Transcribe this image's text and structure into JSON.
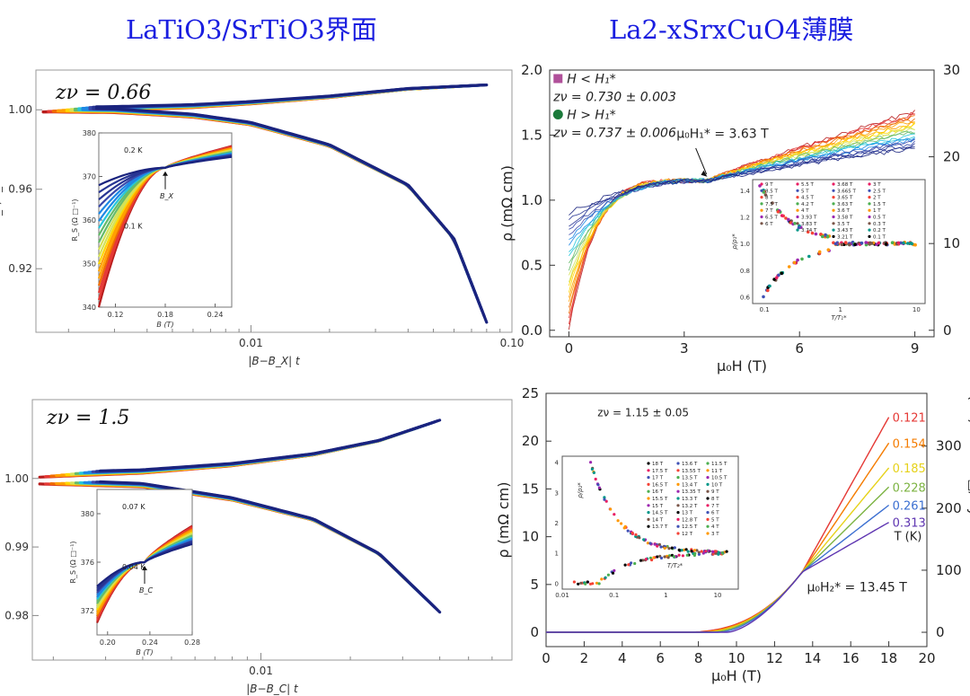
{
  "headings": {
    "left": "LaTiO3/SrTiO3界面",
    "right": "La2-xSrxCuO4薄膜"
  },
  "colors": {
    "title": "#1a1ee0",
    "rainbow": [
      "#1a237e",
      "#283593",
      "#3949ab",
      "#1e88e5",
      "#26c6da",
      "#66bb6a",
      "#d4e157",
      "#ffd600",
      "#ffa000",
      "#ef6c00",
      "#e53935",
      "#b71c1c"
    ]
  },
  "chart_data": [
    {
      "id": "A",
      "type": "line",
      "annotation": "zν = 0.66",
      "xlabel": "|B−B_X| t",
      "ylabel": "R_S/R_X",
      "x_scale": "log",
      "xlim": [
        0.0015,
        0.1
      ],
      "ylim": [
        0.888,
        1.02
      ],
      "x_ticks": [
        {
          "v": 0.01,
          "label": "0.01"
        },
        {
          "v": 0.1,
          "label": "0.10"
        }
      ],
      "y_ticks": [
        {
          "v": 1.0,
          "label": "1.00"
        },
        {
          "v": 0.96,
          "label": "0.96"
        },
        {
          "v": 0.92,
          "label": "0.92"
        }
      ],
      "upper_branch": {
        "x": [
          0.0016,
          0.003,
          0.006,
          0.01,
          0.02,
          0.04,
          0.08
        ],
        "y": [
          1.0,
          1.0006,
          1.0018,
          1.0035,
          1.0065,
          1.0105,
          1.0125
        ]
      },
      "lower_branch": {
        "x": [
          0.0016,
          0.003,
          0.006,
          0.01,
          0.02,
          0.04,
          0.06,
          0.08
        ],
        "y": [
          1.0,
          0.9995,
          0.997,
          0.993,
          0.982,
          0.962,
          0.935,
          0.893
        ]
      },
      "inset": {
        "xlabel": "B (T)",
        "ylabel": "R_S (Ω □⁻¹)",
        "xlim": [
          0.1,
          0.26
        ],
        "ylim": [
          340,
          380
        ],
        "x_ticks": [
          {
            "v": 0.12,
            "label": "0.12"
          },
          {
            "v": 0.18,
            "label": "0.18"
          },
          {
            "v": 0.24,
            "label": "0.24"
          }
        ],
        "y_ticks": [
          {
            "v": 340,
            "label": "340"
          },
          {
            "v": 350,
            "label": "350"
          },
          {
            "v": 360,
            "label": "360"
          },
          {
            "v": 370,
            "label": "370"
          },
          {
            "v": 380,
            "label": "380"
          }
        ],
        "crossing": {
          "x": 0.18,
          "y": 372
        },
        "labels": {
          "t_high": "0.2 K",
          "t_low": "0.1 K",
          "cross": "B_X"
        },
        "high_T": {
          "y_start": 368,
          "y_end": 374.5
        },
        "low_T": {
          "y_start": 340,
          "y_end": 377
        }
      }
    },
    {
      "id": "B",
      "type": "line",
      "annotation": "zν = 1.5",
      "xlabel": "|B−B_C| t",
      "ylabel": "R_S/R_C",
      "x_scale": "log",
      "xlim": [
        0.0017,
        0.07
      ],
      "ylim": [
        0.9735,
        1.0115
      ],
      "x_ticks": [
        {
          "v": 0.01,
          "label": "0.01"
        }
      ],
      "y_ticks": [
        {
          "v": 1.0,
          "label": "1.00"
        },
        {
          "v": 0.99,
          "label": "0.99"
        },
        {
          "v": 0.98,
          "label": "0.98"
        }
      ],
      "upper_branch": {
        "x": [
          0.0018,
          0.004,
          0.008,
          0.015,
          0.025,
          0.04
        ],
        "y": [
          1.0005,
          1.001,
          1.002,
          1.0035,
          1.0055,
          1.0085
        ]
      },
      "lower_branch": {
        "x": [
          0.0018,
          0.004,
          0.008,
          0.015,
          0.025,
          0.04
        ],
        "y": [
          0.9995,
          0.999,
          0.997,
          0.994,
          0.989,
          0.9805
        ]
      },
      "inset": {
        "xlabel": "B (T)",
        "ylabel": "R_S (Ω □⁻¹)",
        "xlim": [
          0.19,
          0.28
        ],
        "ylim": [
          370,
          382
        ],
        "x_ticks": [
          {
            "v": 0.2,
            "label": "0.20"
          },
          {
            "v": 0.24,
            "label": "0.24"
          },
          {
            "v": 0.28,
            "label": "0.28"
          }
        ],
        "y_ticks": [
          {
            "v": 372,
            "label": "372"
          },
          {
            "v": 376,
            "label": "376"
          },
          {
            "v": 380,
            "label": "380"
          }
        ],
        "crossing": {
          "x": 0.235,
          "y": 376
        },
        "labels": {
          "t_high": "0.07 K",
          "t_low": "0.04 K",
          "cross": "B_C"
        },
        "high_T": {
          "y_start": 374,
          "y_end": 377.5
        },
        "low_T": {
          "y_start": 371,
          "y_end": 379
        }
      }
    },
    {
      "id": "C",
      "type": "line",
      "xlabel": "μ₀H (T)",
      "ylabel": "ρ (mΩ cm)",
      "right_ylabel": "R□/layer",
      "right_unit": "(kΩ)",
      "xlim": [
        -0.5,
        9.5
      ],
      "ylim": [
        -0.05,
        2.0
      ],
      "x_ticks": [
        0,
        3,
        6,
        9
      ],
      "y_ticks": [
        {
          "v": 0.0,
          "label": "0.0"
        },
        {
          "v": 0.5,
          "label": "0.5"
        },
        {
          "v": 1.0,
          "label": "1.0"
        },
        {
          "v": 1.5,
          "label": "1.5"
        },
        {
          "v": 2.0,
          "label": "2.0"
        }
      ],
      "right_ticks": [
        {
          "v": 0,
          "label": "0"
        },
        {
          "v": 10,
          "label": "10"
        },
        {
          "v": 20,
          "label": "20"
        },
        {
          "v": 30,
          "label": "30"
        }
      ],
      "right_scale_kohm_per_mohmcm": 15,
      "crossing": {
        "x": 3.63,
        "y": 1.15
      },
      "legend": [
        {
          "marker": "square",
          "color": "#b0509a",
          "text": "H < H₁*"
        },
        {
          "marker": "none",
          "text": "zν = 0.730 ± 0.003"
        },
        {
          "marker": "circle",
          "color": "#1b7a3a",
          "text": "H > H₁*"
        },
        {
          "marker": "none",
          "text": "zν = 0.737 ± 0.006"
        }
      ],
      "callout": "μ₀H₁* = 3.63 T",
      "curves_low_T_start": {
        "y_start": 0.0,
        "y_end": 1.68
      },
      "curves_high_T_start": {
        "y_start": 0.9,
        "y_end": 1.4
      },
      "inset": {
        "xlabel": "T/T₁*",
        "ylabel": "ρ/ρ₁*",
        "x_scale": "log",
        "xlim": [
          0.07,
          13
        ],
        "ylim": [
          0.55,
          1.48
        ],
        "x_ticks": [
          {
            "v": 0.1,
            "label": "0.1"
          },
          {
            "v": 1,
            "label": "1"
          },
          {
            "v": 10,
            "label": "10"
          }
        ],
        "y_ticks": [
          {
            "v": 0.6,
            "label": "0.6"
          },
          {
            "v": 0.8,
            "label": "0.8"
          },
          {
            "v": 1.0,
            "label": "1.0"
          },
          {
            "v": 1.2,
            "label": "1.2"
          },
          {
            "v": 1.4,
            "label": "1.4"
          }
        ],
        "legend_cols": [
          [
            "9 T",
            "8.5 T",
            "8 T",
            "7.5 T",
            "7 T",
            "6.5 T",
            "6 T"
          ],
          [
            "5.5 T",
            "5 T",
            "4.5 T",
            "4.2 T",
            "4 T",
            "3.93 T",
            "3.83 T",
            "3.74 T"
          ],
          [
            "3.68 T",
            "3.665 T",
            "3.65 T",
            "3.63 T",
            "3.6 T",
            "3.58 T",
            "3.5 T",
            "3.43 T",
            "3.21 T"
          ],
          [
            "3 T",
            "2.5 T",
            "2 T",
            "1.5 T",
            "1 T",
            "0.5 T",
            "0.3 T",
            "0.2 T",
            "0.1 T"
          ]
        ]
      }
    },
    {
      "id": "D",
      "type": "line",
      "annotation": "zν = 1.15 ± 0.05",
      "xlabel": "μ₀H (T)",
      "ylabel": "ρ (mΩ cm)",
      "right_ylabel": "R□/layer",
      "right_unit": "(kΩ)",
      "xlim": [
        0,
        20
      ],
      "ylim": [
        -1.5,
        25
      ],
      "x_ticks": [
        0,
        2,
        4,
        6,
        8,
        10,
        12,
        14,
        16,
        18,
        20
      ],
      "y_ticks": [
        {
          "v": 0,
          "label": "0"
        },
        {
          "v": 5,
          "label": "5"
        },
        {
          "v": 10,
          "label": "10"
        },
        {
          "v": 15,
          "label": "15"
        },
        {
          "v": 20,
          "label": "20"
        },
        {
          "v": 25,
          "label": "25"
        }
      ],
      "right_ticks": [
        {
          "v": 0,
          "label": "0"
        },
        {
          "v": 100,
          "label": "100"
        },
        {
          "v": 200,
          "label": "200"
        },
        {
          "v": 300,
          "label": "300"
        }
      ],
      "right_scale_kohm_per_mohmcm": 15.4,
      "crossing": {
        "x": 13.45,
        "y": 6.3
      },
      "callout": "μ₀H₂* = 13.45 T",
      "temp_title": "T (K)",
      "series": [
        {
          "name": "0.121",
          "color": "#e53935",
          "end": 22.5
        },
        {
          "name": "0.154",
          "color": "#f57c00",
          "end": 19.8
        },
        {
          "name": "0.185",
          "color": "#e6d21a",
          "end": 17.2
        },
        {
          "name": "0.228",
          "color": "#7cb342",
          "end": 15.2
        },
        {
          "name": "0.261",
          "color": "#3b6fd1",
          "end": 13.3
        },
        {
          "name": "0.313",
          "color": "#5e35b1",
          "end": 11.5
        }
      ],
      "inset": {
        "xlabel": "T/T₂*",
        "ylabel": "ρ/ρ₂*",
        "x_scale": "log",
        "xlim": [
          0.01,
          25
        ],
        "ylim": [
          -0.2,
          4.2
        ],
        "x_ticks": [
          {
            "v": 0.01,
            "label": "0.01"
          },
          {
            "v": 0.1,
            "label": "0.1"
          },
          {
            "v": 1,
            "label": "1"
          },
          {
            "v": 10,
            "label": "10"
          }
        ],
        "y_ticks": [
          {
            "v": 0,
            "label": "0"
          },
          {
            "v": 1,
            "label": "1"
          },
          {
            "v": 2,
            "label": "2"
          },
          {
            "v": 3,
            "label": "3"
          },
          {
            "v": 4,
            "label": "4"
          }
        ],
        "legend_cols": [
          [
            "18 T",
            "17.5 T",
            "17 T",
            "16.5 T",
            "16 T",
            "15.5 T",
            "15 T",
            "14.5 T",
            "14 T",
            "13.7 T"
          ],
          [
            "13.6 T",
            "13.55 T",
            "13.5 T",
            "13.4 T",
            "13.35 T",
            "13.3 T",
            "13.2 T",
            "13 T",
            "12.8 T",
            "12.5 T",
            "12 T"
          ],
          [
            "11.5 T",
            "11 T",
            "10.5 T",
            "10 T",
            "9 T",
            "8 T",
            "7 T",
            "6 T",
            "5 T",
            "4 T",
            "3 T"
          ]
        ]
      }
    }
  ]
}
